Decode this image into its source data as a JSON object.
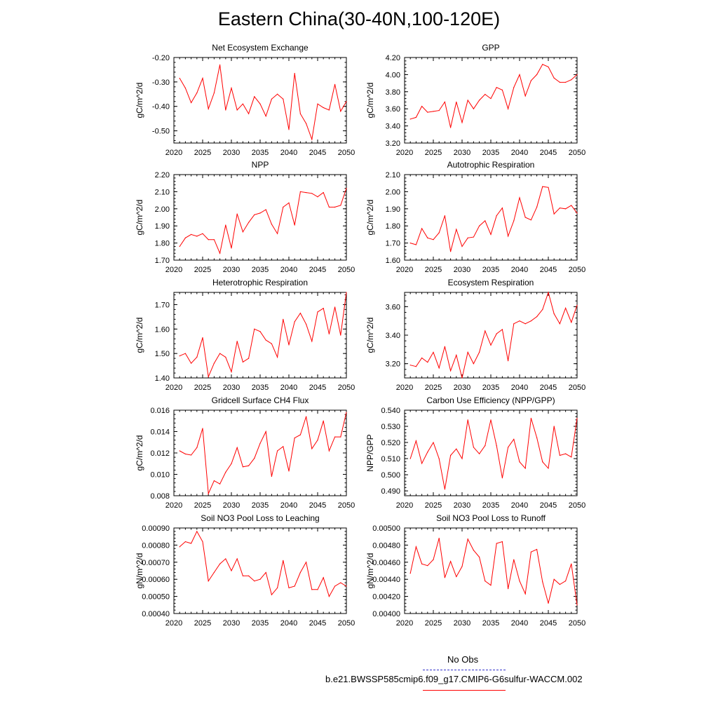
{
  "title": "Eastern China(30-40N,100-120E)",
  "colors": {
    "series": "#ff0000",
    "obs": "#3333cc",
    "axis": "#000000"
  },
  "legend": {
    "obs_label": "No Obs",
    "model_label": "b.e21.BWSSP585cmip6.f09_g17.CMIP6-G6sulfur-WACCM.002"
  },
  "chart_data": [
    {
      "type": "line",
      "title": "Net Ecosystem Exchange",
      "xlabel": "",
      "ylabel": "gC/m^2/d",
      "xlim": [
        2020,
        2050
      ],
      "ylim": [
        -0.55,
        -0.2
      ],
      "xticks": [
        "2020",
        "2025",
        "2030",
        "2035",
        "2040",
        "2045",
        "2050"
      ],
      "yticks": [
        "-0.20",
        "-0.30",
        "-0.40",
        "-0.50"
      ],
      "x": [
        2021,
        2022,
        2023,
        2024,
        2025,
        2026,
        2027,
        2028,
        2029,
        2030,
        2031,
        2032,
        2033,
        2034,
        2035,
        2036,
        2037,
        2038,
        2039,
        2040,
        2041,
        2042,
        2043,
        2044,
        2045,
        2046,
        2047,
        2048,
        2049,
        2050
      ],
      "values": [
        -0.285,
        -0.325,
        -0.385,
        -0.345,
        -0.285,
        -0.41,
        -0.345,
        -0.23,
        -0.415,
        -0.325,
        -0.415,
        -0.39,
        -0.43,
        -0.36,
        -0.39,
        -0.44,
        -0.37,
        -0.35,
        -0.37,
        -0.495,
        -0.265,
        -0.43,
        -0.47,
        -0.535,
        -0.39,
        -0.405,
        -0.415,
        -0.31,
        -0.42,
        -0.38
      ]
    },
    {
      "type": "line",
      "title": "GPP",
      "xlabel": "",
      "ylabel": "gC/m^2/d",
      "xlim": [
        2020,
        2050
      ],
      "ylim": [
        3.2,
        4.2
      ],
      "xticks": [
        "2020",
        "2025",
        "2030",
        "2035",
        "2040",
        "2045",
        "2050"
      ],
      "yticks": [
        "3.20",
        "3.40",
        "3.60",
        "3.80",
        "4.00",
        "4.20"
      ],
      "x": [
        2021,
        2022,
        2023,
        2024,
        2025,
        2026,
        2027,
        2028,
        2029,
        2030,
        2031,
        2032,
        2033,
        2034,
        2035,
        2036,
        2037,
        2038,
        2039,
        2040,
        2041,
        2042,
        2043,
        2044,
        2045,
        2046,
        2047,
        2048,
        2049,
        2050
      ],
      "values": [
        3.48,
        3.5,
        3.63,
        3.56,
        3.57,
        3.58,
        3.68,
        3.38,
        3.68,
        3.44,
        3.7,
        3.6,
        3.7,
        3.77,
        3.72,
        3.85,
        3.82,
        3.6,
        3.85,
        4.0,
        3.75,
        3.93,
        4.0,
        4.12,
        4.09,
        3.96,
        3.91,
        3.91,
        3.94,
        4.0
      ]
    },
    {
      "type": "line",
      "title": "NPP",
      "xlabel": "",
      "ylabel": "gC/m^2/d",
      "xlim": [
        2020,
        2050
      ],
      "ylim": [
        1.7,
        2.2
      ],
      "xticks": [
        "2020",
        "2025",
        "2030",
        "2035",
        "2040",
        "2045",
        "2050"
      ],
      "yticks": [
        "1.70",
        "1.80",
        "1.90",
        "2.00",
        "2.10",
        "2.20"
      ],
      "x": [
        2021,
        2022,
        2023,
        2024,
        2025,
        2026,
        2027,
        2028,
        2029,
        2030,
        2031,
        2032,
        2033,
        2034,
        2035,
        2036,
        2037,
        2038,
        2039,
        2040,
        2041,
        2042,
        2043,
        2044,
        2045,
        2046,
        2047,
        2048,
        2049,
        2050
      ],
      "values": [
        1.78,
        1.83,
        1.85,
        1.84,
        1.855,
        1.82,
        1.82,
        1.74,
        1.905,
        1.77,
        1.97,
        1.865,
        1.92,
        1.965,
        1.975,
        1.995,
        1.91,
        1.855,
        2.01,
        2.035,
        1.905,
        2.1,
        2.095,
        2.09,
        2.07,
        2.095,
        2.01,
        2.01,
        2.02,
        2.12
      ]
    },
    {
      "type": "line",
      "title": "Autotrophic Respiration",
      "xlabel": "",
      "ylabel": "gC/m^2/d",
      "xlim": [
        2020,
        2050
      ],
      "ylim": [
        1.6,
        2.1
      ],
      "xticks": [
        "2020",
        "2025",
        "2030",
        "2035",
        "2040",
        "2045",
        "2050"
      ],
      "yticks": [
        "1.60",
        "1.70",
        "1.80",
        "1.90",
        "2.00",
        "2.10"
      ],
      "x": [
        2021,
        2022,
        2023,
        2024,
        2025,
        2026,
        2027,
        2028,
        2029,
        2030,
        2031,
        2032,
        2033,
        2034,
        2035,
        2036,
        2037,
        2038,
        2039,
        2040,
        2041,
        2042,
        2043,
        2044,
        2045,
        2046,
        2047,
        2048,
        2049,
        2050
      ],
      "values": [
        1.7,
        1.69,
        1.785,
        1.73,
        1.72,
        1.76,
        1.86,
        1.65,
        1.78,
        1.68,
        1.73,
        1.735,
        1.8,
        1.83,
        1.75,
        1.86,
        1.905,
        1.74,
        1.83,
        1.965,
        1.85,
        1.835,
        1.91,
        2.03,
        2.025,
        1.87,
        1.905,
        1.9,
        1.92,
        1.875
      ]
    },
    {
      "type": "line",
      "title": "Heterotrophic Respiration",
      "xlabel": "",
      "ylabel": "gC/m^2/d",
      "xlim": [
        2020,
        2050
      ],
      "ylim": [
        1.4,
        1.75
      ],
      "xticks": [
        "2020",
        "2025",
        "2030",
        "2035",
        "2040",
        "2045",
        "2050"
      ],
      "yticks": [
        "1.40",
        "1.50",
        "1.60",
        "1.70"
      ],
      "x": [
        2021,
        2022,
        2023,
        2024,
        2025,
        2026,
        2027,
        2028,
        2029,
        2030,
        2031,
        2032,
        2033,
        2034,
        2035,
        2036,
        2037,
        2038,
        2039,
        2040,
        2041,
        2042,
        2043,
        2044,
        2045,
        2046,
        2047,
        2048,
        2049,
        2050
      ],
      "values": [
        1.49,
        1.5,
        1.46,
        1.485,
        1.565,
        1.405,
        1.46,
        1.5,
        1.485,
        1.425,
        1.55,
        1.465,
        1.48,
        1.6,
        1.59,
        1.555,
        1.54,
        1.485,
        1.64,
        1.535,
        1.63,
        1.665,
        1.62,
        1.55,
        1.67,
        1.685,
        1.58,
        1.69,
        1.575,
        1.75
      ]
    },
    {
      "type": "line",
      "title": "Ecosystem Respiration",
      "xlabel": "",
      "ylabel": "gC/m^2/d",
      "xlim": [
        2020,
        2050
      ],
      "ylim": [
        3.1,
        3.7
      ],
      "xticks": [
        "2020",
        "2025",
        "2030",
        "2035",
        "2040",
        "2045",
        "2050"
      ],
      "yticks": [
        "3.20",
        "3.40",
        "3.60"
      ],
      "x": [
        2021,
        2022,
        2023,
        2024,
        2025,
        2026,
        2027,
        2028,
        2029,
        2030,
        2031,
        2032,
        2033,
        2034,
        2035,
        2036,
        2037,
        2038,
        2039,
        2040,
        2041,
        2042,
        2043,
        2044,
        2045,
        2046,
        2047,
        2048,
        2049,
        2050
      ],
      "values": [
        3.19,
        3.18,
        3.24,
        3.21,
        3.28,
        3.17,
        3.32,
        3.15,
        3.26,
        3.1,
        3.28,
        3.2,
        3.28,
        3.43,
        3.33,
        3.41,
        3.44,
        3.22,
        3.48,
        3.5,
        3.48,
        3.5,
        3.53,
        3.58,
        3.7,
        3.55,
        3.48,
        3.59,
        3.49,
        3.61
      ]
    },
    {
      "type": "line",
      "title": "Gridcell Surface CH4 Flux",
      "xlabel": "",
      "ylabel": "gC/m^2/d",
      "xlim": [
        2020,
        2050
      ],
      "ylim": [
        0.008,
        0.016
      ],
      "xticks": [
        "2020",
        "2025",
        "2030",
        "2035",
        "2040",
        "2045",
        "2050"
      ],
      "yticks": [
        "0.008",
        "0.010",
        "0.012",
        "0.014",
        "0.016"
      ],
      "x": [
        2021,
        2022,
        2023,
        2024,
        2025,
        2026,
        2027,
        2028,
        2029,
        2030,
        2031,
        2032,
        2033,
        2034,
        2035,
        2036,
        2037,
        2038,
        2039,
        2040,
        2041,
        2042,
        2043,
        2044,
        2045,
        2046,
        2047,
        2048,
        2049,
        2050
      ],
      "values": [
        0.0122,
        0.0119,
        0.0118,
        0.0125,
        0.0143,
        0.0082,
        0.0094,
        0.0091,
        0.0102,
        0.011,
        0.0125,
        0.0107,
        0.0108,
        0.0115,
        0.0129,
        0.014,
        0.0098,
        0.0122,
        0.0126,
        0.0103,
        0.0134,
        0.0137,
        0.0154,
        0.0124,
        0.0132,
        0.015,
        0.0122,
        0.0135,
        0.0135,
        0.0158
      ]
    },
    {
      "type": "line",
      "title": "Carbon Use Efficiency (NPP/GPP)",
      "xlabel": "",
      "ylabel": "NPP/GPP",
      "xlim": [
        2020,
        2050
      ],
      "ylim": [
        0.487,
        0.54
      ],
      "xticks": [
        "2020",
        "2025",
        "2030",
        "2035",
        "2040",
        "2045",
        "2050"
      ],
      "yticks": [
        "0.490",
        "0.500",
        "0.510",
        "0.520",
        "0.530",
        "0.540"
      ],
      "x": [
        2021,
        2022,
        2023,
        2024,
        2025,
        2026,
        2027,
        2028,
        2029,
        2030,
        2031,
        2032,
        2033,
        2034,
        2035,
        2036,
        2037,
        2038,
        2039,
        2040,
        2041,
        2042,
        2043,
        2044,
        2045,
        2046,
        2047,
        2048,
        2049,
        2050
      ],
      "values": [
        0.51,
        0.521,
        0.507,
        0.514,
        0.52,
        0.51,
        0.491,
        0.512,
        0.516,
        0.51,
        0.534,
        0.517,
        0.513,
        0.518,
        0.534,
        0.518,
        0.498,
        0.517,
        0.522,
        0.508,
        0.504,
        0.535,
        0.523,
        0.508,
        0.504,
        0.53,
        0.512,
        0.513,
        0.511,
        0.535
      ]
    },
    {
      "type": "line",
      "title": "Soil NO3 Pool Loss to Leaching",
      "xlabel": "",
      "ylabel": "gN/m^2/d",
      "xlim": [
        2020,
        2050
      ],
      "ylim": [
        0.0004,
        0.0009
      ],
      "xticks": [
        "2020",
        "2025",
        "2030",
        "2035",
        "2040",
        "2045",
        "2050"
      ],
      "yticks": [
        "0.00040",
        "0.00050",
        "0.00060",
        "0.00070",
        "0.00080",
        "0.00090"
      ],
      "x": [
        2021,
        2022,
        2023,
        2024,
        2025,
        2026,
        2027,
        2028,
        2029,
        2030,
        2031,
        2032,
        2033,
        2034,
        2035,
        2036,
        2037,
        2038,
        2039,
        2040,
        2041,
        2042,
        2043,
        2044,
        2045,
        2046,
        2047,
        2048,
        2049,
        2050
      ],
      "values": [
        0.00079,
        0.00082,
        0.00081,
        0.00088,
        0.00082,
        0.00059,
        0.00064,
        0.00069,
        0.00072,
        0.00065,
        0.00072,
        0.00062,
        0.00062,
        0.00059,
        0.0006,
        0.00064,
        0.00051,
        0.00055,
        0.00071,
        0.00055,
        0.00056,
        0.00064,
        0.0007,
        0.00054,
        0.00054,
        0.00061,
        0.0005,
        0.00056,
        0.00058,
        0.00056
      ]
    },
    {
      "type": "line",
      "title": "Soil NO3 Pool Loss to Runoff",
      "xlabel": "",
      "ylabel": "gN/m^2/d",
      "xlim": [
        2020,
        2050
      ],
      "ylim": [
        0.004,
        0.005
      ],
      "xticks": [
        "2020",
        "2025",
        "2030",
        "2035",
        "2040",
        "2045",
        "2050"
      ],
      "yticks": [
        "0.00400",
        "0.00420",
        "0.00440",
        "0.00460",
        "0.00480",
        "0.00500"
      ],
      "x": [
        2021,
        2022,
        2023,
        2024,
        2025,
        2026,
        2027,
        2028,
        2029,
        2030,
        2031,
        2032,
        2033,
        2034,
        2035,
        2036,
        2037,
        2038,
        2039,
        2040,
        2041,
        2042,
        2043,
        2044,
        2045,
        2046,
        2047,
        2048,
        2049,
        2050
      ],
      "values": [
        0.00447,
        0.00478,
        0.00458,
        0.00456,
        0.00463,
        0.00488,
        0.00442,
        0.00461,
        0.00443,
        0.00455,
        0.00487,
        0.00474,
        0.00466,
        0.00438,
        0.00433,
        0.00482,
        0.00484,
        0.00429,
        0.00463,
        0.00438,
        0.00423,
        0.00472,
        0.00475,
        0.00437,
        0.00412,
        0.0044,
        0.00434,
        0.00438,
        0.00458,
        0.0041
      ]
    }
  ]
}
